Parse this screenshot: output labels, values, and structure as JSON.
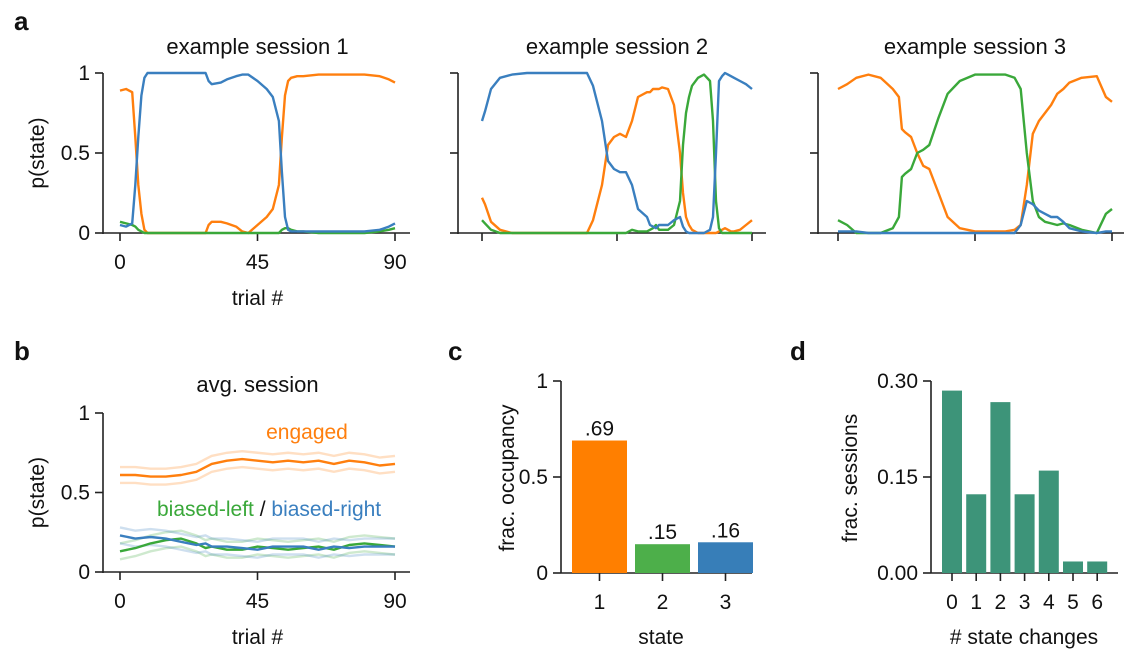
{
  "panels": {
    "a": "a",
    "b": "b",
    "c": "c",
    "d": "d"
  },
  "colors": {
    "engaged": "#ff7f0e",
    "biased_left": "#3aa83a",
    "biased_right": "#3a7fbf",
    "occupancy_1": "#ff7f00",
    "occupancy_2": "#4daf4a",
    "occupancy_3": "#377eb8",
    "state_changes": "#3d9479"
  },
  "chart_data": [
    {
      "id": "session1",
      "type": "line",
      "title": "example session 1",
      "xlabel": "trial #",
      "ylabel": "p(state)",
      "xlim": [
        0,
        90
      ],
      "ylim": [
        0,
        1
      ],
      "xticks": [
        "0",
        "45",
        "90"
      ],
      "yticks": [
        "0",
        "0.5",
        "1"
      ],
      "x": [
        0,
        2,
        4,
        5,
        6,
        7,
        8,
        9,
        10,
        12,
        15,
        20,
        25,
        28,
        29,
        30,
        33,
        35,
        38,
        40,
        42,
        45,
        48,
        50,
        52,
        53,
        54,
        55,
        56,
        58,
        60,
        65,
        70,
        75,
        80,
        85,
        88,
        90
      ],
      "series": [
        {
          "key": "engaged",
          "values": [
            0.89,
            0.9,
            0.88,
            0.6,
            0.3,
            0.12,
            0.02,
            0,
            0,
            0,
            0,
            0,
            0,
            0,
            0.05,
            0.07,
            0.07,
            0.06,
            0.04,
            0.01,
            0,
            0.05,
            0.1,
            0.15,
            0.3,
            0.6,
            0.86,
            0.95,
            0.97,
            0.98,
            0.98,
            0.99,
            0.99,
            0.99,
            0.99,
            0.98,
            0.96,
            0.94
          ]
        },
        {
          "key": "biased_left",
          "values": [
            0.07,
            0.06,
            0.05,
            0.04,
            0.02,
            0.01,
            0,
            0,
            0,
            0,
            0,
            0,
            0,
            0,
            0,
            0,
            0,
            0,
            0,
            0,
            0,
            0,
            0,
            0,
            0,
            0.02,
            0.03,
            0.03,
            0.02,
            0.01,
            0.01,
            0,
            0,
            0,
            0,
            0.01,
            0.02,
            0.03
          ]
        },
        {
          "key": "biased_right",
          "values": [
            0.05,
            0.04,
            0.06,
            0.3,
            0.6,
            0.86,
            0.97,
            1,
            1,
            1,
            1,
            1,
            1,
            1,
            0.95,
            0.93,
            0.94,
            0.96,
            0.98,
            0.99,
            0.99,
            0.95,
            0.9,
            0.85,
            0.7,
            0.38,
            0.1,
            0.02,
            0.01,
            0.01,
            0.01,
            0.01,
            0.01,
            0.01,
            0.01,
            0.02,
            0.04,
            0.06
          ]
        }
      ]
    },
    {
      "id": "session2",
      "type": "line",
      "title": "example session 2",
      "xlim": [
        0,
        90
      ],
      "ylim": [
        0,
        1
      ],
      "x": [
        0,
        1,
        3,
        6,
        10,
        15,
        20,
        25,
        30,
        35,
        37,
        40,
        42,
        44,
        46,
        48,
        50,
        52,
        55,
        56,
        57,
        58,
        59,
        60,
        62,
        64,
        66,
        67,
        68,
        69,
        70,
        72,
        74,
        76,
        77,
        78,
        79,
        80,
        81,
        82,
        83,
        84,
        86,
        88,
        90
      ],
      "series": [
        {
          "key": "engaged",
          "values": [
            0.22,
            0.18,
            0.07,
            0.02,
            0,
            0,
            0,
            0,
            0,
            0,
            0.08,
            0.3,
            0.55,
            0.6,
            0.62,
            0.6,
            0.7,
            0.85,
            0.88,
            0.88,
            0.9,
            0.9,
            0.9,
            0.91,
            0.9,
            0.8,
            0.5,
            0.25,
            0.1,
            0.05,
            0.02,
            0,
            0,
            0,
            0,
            0,
            0.01,
            0.02,
            0.03,
            0.02,
            0.01,
            0.01,
            0.02,
            0.05,
            0.08
          ]
        },
        {
          "key": "biased_left",
          "values": [
            0.08,
            0.06,
            0.02,
            0,
            0,
            0,
            0,
            0,
            0,
            0,
            0,
            0,
            0,
            0,
            0,
            0,
            0.02,
            0.01,
            0.01,
            0.02,
            0.03,
            0.05,
            0.02,
            0.02,
            0.02,
            0.05,
            0.2,
            0.55,
            0.75,
            0.85,
            0.92,
            0.97,
            0.99,
            0.95,
            0.7,
            0.2,
            0.03,
            0,
            0,
            0,
            0,
            0,
            0,
            0,
            0
          ]
        },
        {
          "key": "biased_right",
          "values": [
            0.7,
            0.76,
            0.9,
            0.97,
            0.99,
            1,
            1,
            1,
            1,
            1,
            0.92,
            0.7,
            0.45,
            0.4,
            0.38,
            0.38,
            0.3,
            0.15,
            0.1,
            0.05,
            0.04,
            0.03,
            0.05,
            0.05,
            0.05,
            0.08,
            0.1,
            0.04,
            0.01,
            0,
            0,
            0,
            0,
            0.02,
            0.1,
            0.5,
            0.95,
            0.98,
            1,
            0.99,
            0.98,
            0.97,
            0.95,
            0.93,
            0.9
          ]
        }
      ]
    },
    {
      "id": "session3",
      "type": "line",
      "title": "example session 3",
      "xlim": [
        0,
        90
      ],
      "ylim": [
        0,
        1
      ],
      "x": [
        0,
        3,
        6,
        10,
        14,
        18,
        20,
        21,
        22,
        24,
        26,
        28,
        30,
        33,
        36,
        40,
        45,
        50,
        55,
        58,
        60,
        62,
        64,
        66,
        68,
        70,
        72,
        74,
        76,
        80,
        85,
        88,
        90
      ],
      "series": [
        {
          "key": "engaged",
          "values": [
            0.9,
            0.93,
            0.97,
            0.99,
            0.97,
            0.9,
            0.85,
            0.65,
            0.63,
            0.6,
            0.5,
            0.42,
            0.4,
            0.25,
            0.1,
            0.03,
            0.01,
            0.01,
            0.01,
            0.02,
            0.05,
            0.3,
            0.62,
            0.7,
            0.75,
            0.8,
            0.87,
            0.9,
            0.94,
            0.97,
            0.98,
            0.85,
            0.82
          ]
        },
        {
          "key": "biased_left",
          "values": [
            0.08,
            0.05,
            0,
            0,
            0,
            0.03,
            0.1,
            0.35,
            0.37,
            0.4,
            0.5,
            0.52,
            0.55,
            0.72,
            0.87,
            0.95,
            0.99,
            0.99,
            0.99,
            0.97,
            0.9,
            0.5,
            0.2,
            0.1,
            0.07,
            0.06,
            0.05,
            0.06,
            0.05,
            0.02,
            0,
            0.12,
            0.15
          ]
        },
        {
          "key": "biased_right",
          "values": [
            0.01,
            0.01,
            0.01,
            0,
            0,
            0,
            0,
            0,
            0,
            0,
            0,
            0,
            0,
            0,
            0,
            0,
            0,
            0,
            0,
            0,
            0.05,
            0.2,
            0.18,
            0.14,
            0.12,
            0.1,
            0.1,
            0.07,
            0.03,
            0.01,
            0,
            0.01,
            0.01
          ]
        }
      ]
    },
    {
      "id": "avg",
      "type": "line",
      "title": "avg. session",
      "xlabel": "trial #",
      "ylabel": "p(state)",
      "xlim": [
        0,
        90
      ],
      "ylim": [
        0,
        1
      ],
      "xticks": [
        "0",
        "45",
        "90"
      ],
      "yticks": [
        "0",
        "0.5",
        "1"
      ],
      "annotations": {
        "engaged": "engaged",
        "biased_left": "biased-left",
        "separator": "/",
        "biased_right": "biased-right"
      },
      "band": 0.05,
      "x": [
        0,
        5,
        10,
        15,
        20,
        25,
        28,
        30,
        35,
        40,
        45,
        50,
        55,
        60,
        65,
        70,
        75,
        80,
        85,
        90
      ],
      "series": [
        {
          "key": "engaged",
          "values": [
            0.61,
            0.61,
            0.6,
            0.6,
            0.61,
            0.63,
            0.66,
            0.68,
            0.7,
            0.71,
            0.7,
            0.69,
            0.7,
            0.69,
            0.7,
            0.68,
            0.7,
            0.69,
            0.67,
            0.68
          ]
        },
        {
          "key": "biased_left",
          "values": [
            0.13,
            0.15,
            0.18,
            0.2,
            0.21,
            0.18,
            0.15,
            0.16,
            0.14,
            0.14,
            0.16,
            0.15,
            0.14,
            0.15,
            0.16,
            0.14,
            0.17,
            0.18,
            0.17,
            0.16
          ]
        },
        {
          "key": "biased_right",
          "values": [
            0.23,
            0.21,
            0.22,
            0.21,
            0.19,
            0.17,
            0.18,
            0.16,
            0.16,
            0.15,
            0.14,
            0.16,
            0.16,
            0.16,
            0.14,
            0.16,
            0.15,
            0.16,
            0.16,
            0.16
          ]
        }
      ]
    },
    {
      "id": "occupancy",
      "type": "bar",
      "xlabel": "state",
      "ylabel": "frac. occupancy",
      "ylim": [
        0,
        1
      ],
      "yticks": [
        "0",
        "0.5",
        "1"
      ],
      "categories": [
        "1",
        "2",
        "3"
      ],
      "values": [
        0.69,
        0.15,
        0.16
      ],
      "labels": [
        ".69",
        ".15",
        ".16"
      ]
    },
    {
      "id": "changes",
      "type": "bar",
      "xlabel": "# state changes",
      "ylabel": "frac. sessions",
      "ylim": [
        0,
        0.3
      ],
      "yticks": [
        "0.00",
        "0.15",
        "0.30"
      ],
      "categories": [
        "0",
        "1",
        "2",
        "3",
        "4",
        "5",
        "6"
      ],
      "values": [
        0.285,
        0.123,
        0.267,
        0.123,
        0.16,
        0.018,
        0.018
      ]
    }
  ]
}
